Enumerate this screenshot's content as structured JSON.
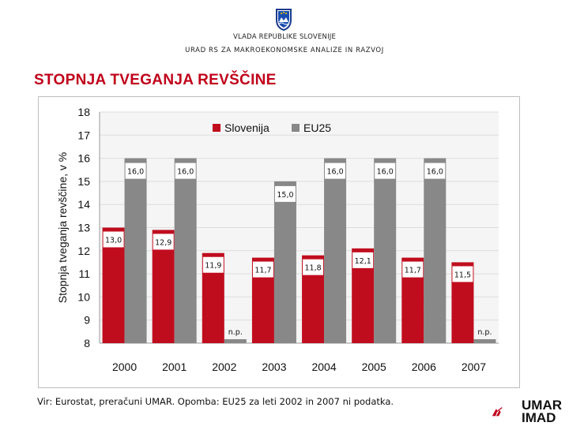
{
  "header": {
    "line1": "VLADA REPUBLIKE SLOVENIJE",
    "line2": "URAD RS ZA MAKROEKONOMSKE ANALIZE IN RAZVOJ"
  },
  "slide_title": "STOPNJA TVEGANJA REVŠČINE",
  "source_note": "Vir: Eurostat, preračuni UMAR. Opomba: EU25 za leti 2002 in 2007 ni podatka.",
  "logo": {
    "line1": "UMAR",
    "line2": "IMAD"
  },
  "colors": {
    "title": "#c0001a",
    "slovenia": "#c00d1e",
    "eu25": "#888888",
    "grid": "#dddddd"
  },
  "chart_data": {
    "type": "bar",
    "categories": [
      "2000",
      "2001",
      "2002",
      "2003",
      "2004",
      "2005",
      "2006",
      "2007"
    ],
    "series": [
      {
        "name": "Slovenija",
        "values": [
          13.0,
          12.9,
          11.9,
          11.7,
          11.8,
          12.1,
          11.7,
          11.5
        ],
        "labels": [
          "13,0",
          "12,9",
          "11,9",
          "11,7",
          "11,8",
          "12,1",
          "11,7",
          "11,5"
        ]
      },
      {
        "name": "EU25",
        "values": [
          16.0,
          16.0,
          null,
          15.0,
          16.0,
          16.0,
          16.0,
          null
        ],
        "labels": [
          "16,0",
          "16,0",
          "n.p.",
          "15,0",
          "16,0",
          "16,0",
          "16,0",
          "n.p."
        ]
      }
    ],
    "ylabel": "Stopnja tveganja revščine, v %",
    "ylim": [
      8,
      18
    ],
    "yticks": [
      8,
      9,
      10,
      11,
      12,
      13,
      14,
      15,
      16,
      17,
      18
    ],
    "grid": true,
    "legend": "top-left"
  }
}
